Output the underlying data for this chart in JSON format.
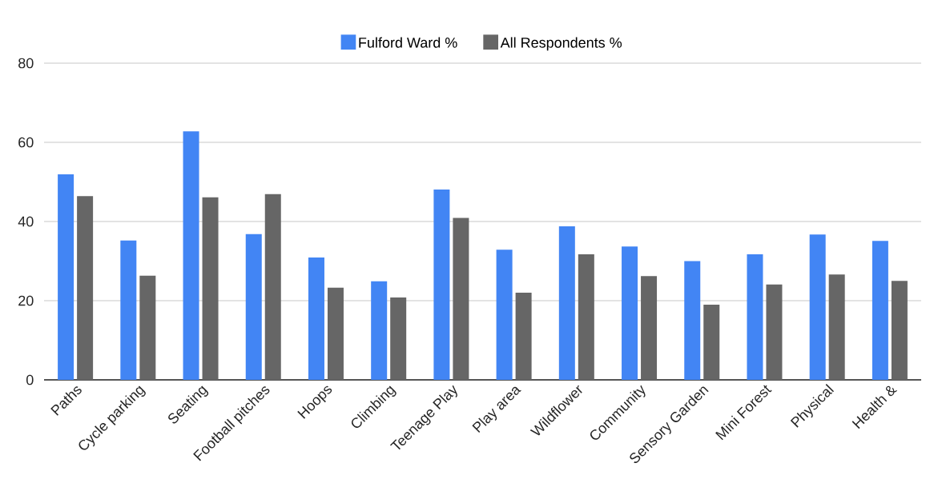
{
  "chart_data": {
    "type": "bar",
    "categories": [
      "Paths",
      "Cycle parking",
      "Seating",
      "Football pitches",
      "Hoops",
      "Climbing",
      "Teenage Play",
      "Play area",
      "Wildflower",
      "Community",
      "Sensory Garden",
      "Mini Forest",
      "Physical",
      "Health &"
    ],
    "series": [
      {
        "name": "Fulford Ward %",
        "color": "#4285f4",
        "values": [
          51.9,
          35.2,
          62.8,
          36.8,
          30.9,
          24.9,
          48.1,
          32.9,
          38.8,
          33.7,
          30.0,
          31.7,
          36.7,
          35.1
        ]
      },
      {
        "name": "All Respondents %",
        "color": "#666666",
        "values": [
          46.4,
          26.3,
          46.1,
          46.9,
          23.3,
          20.8,
          40.9,
          22.0,
          31.7,
          26.2,
          19.0,
          24.1,
          26.6,
          25.0
        ]
      }
    ],
    "ylim": [
      0,
      80
    ],
    "yticks": [
      0,
      20,
      40,
      60,
      80
    ],
    "grid": "y",
    "legend": "top"
  }
}
